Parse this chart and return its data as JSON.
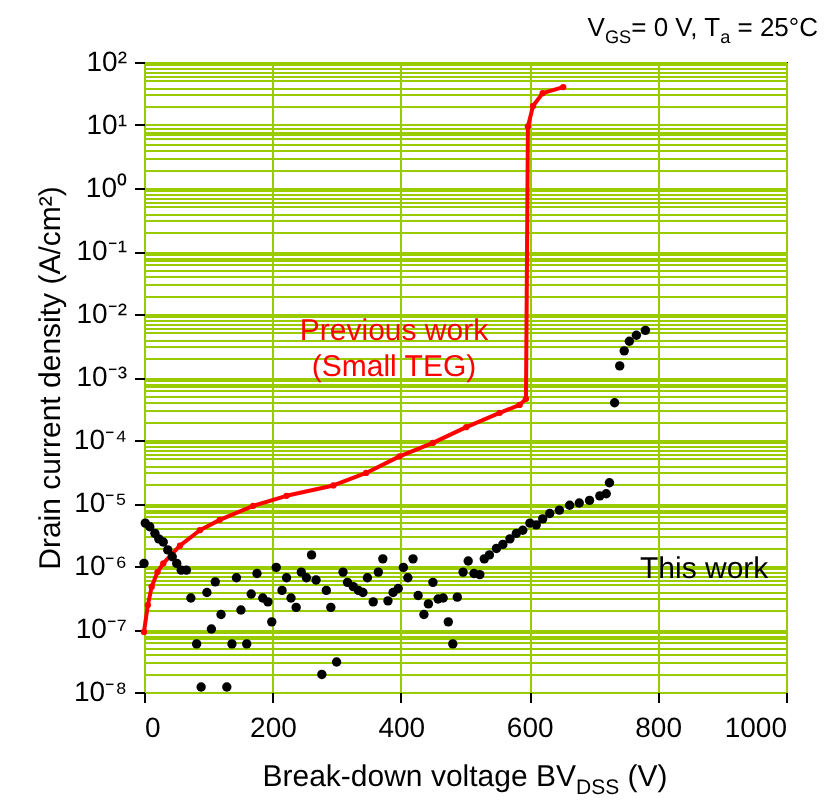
{
  "chart_data": {
    "type": "line",
    "xlabel": "Break-down voltage BV$_{DSS}$ (V)",
    "ylabel": "Drain current density (A/cm²)",
    "annotations": [
      "V$_{GS}$= 0 V, T$_{a}$ = 25°C"
    ],
    "series": [
      {
        "name": "Previous work\n(Small TEG)",
        "color": "#ff0000",
        "type": "line",
        "x": [
          0,
          6,
          12,
          21,
          30,
          56,
          87,
          118,
          170,
          222,
          295,
          346,
          398,
          450,
          502,
          554,
          585,
          595,
          598,
          606,
          621,
          653
        ],
        "values": [
          9e-08,
          2.4e-07,
          4.7e-07,
          8e-07,
          1.1e-06,
          2.1e-06,
          3.7e-06,
          5.4e-06,
          9e-06,
          1.3e-05,
          1.9e-05,
          3e-05,
          5.5e-05,
          9e-05,
          0.00016,
          0.00027,
          0.00036,
          0.00045,
          9.5,
          20,
          32,
          40
        ]
      },
      {
        "name": "This work",
        "color": "#000000",
        "type": "scatter",
        "x": [
          0,
          2,
          9,
          17,
          23,
          30,
          37,
          44,
          51,
          58,
          66,
          73,
          82,
          89,
          98,
          105,
          111,
          120,
          129,
          137,
          144,
          151,
          160,
          167,
          176,
          185,
          193,
          199,
          206,
          215,
          222,
          229,
          237,
          245,
          253,
          261,
          268,
          277,
          284,
          291,
          300,
          310,
          317,
          326,
          334,
          341,
          348,
          357,
          365,
          372,
          380,
          388,
          396,
          404,
          411,
          419,
          427,
          436,
          443,
          450,
          458,
          466,
          474,
          481,
          488,
          497,
          505,
          514,
          523,
          530,
          538,
          549,
          559,
          570,
          580,
          590,
          601,
          611,
          621,
          632,
          647,
          663,
          678,
          694,
          710,
          720,
          725,
          733,
          741,
          748,
          756,
          767,
          781
        ],
        "values": [
          1.1e-06,
          4.8e-06,
          4.2e-06,
          3.3e-06,
          2.7e-06,
          2.4e-06,
          1.8e-06,
          1.4e-06,
          1.1e-06,
          8.6e-07,
          8.6e-07,
          3.1e-07,
          5.8e-08,
          1.2e-08,
          3.8e-07,
          1e-07,
          5.6e-07,
          1.7e-07,
          1.2e-08,
          5.8e-08,
          6.5e-07,
          2e-07,
          5.8e-08,
          3.6e-07,
          7.6e-07,
          3.1e-07,
          2.7e-07,
          1.3e-07,
          9.5e-07,
          4.1e-07,
          6.5e-07,
          3.1e-07,
          2.2e-07,
          8e-07,
          6.5e-07,
          1.5e-06,
          6e-07,
          1.9e-08,
          4.1e-07,
          2.2e-07,
          3e-08,
          8e-07,
          5.5e-07,
          4.7e-07,
          4.1e-07,
          3.8e-07,
          6.5e-07,
          2.7e-07,
          8e-07,
          1.3e-06,
          2.8e-07,
          3.8e-07,
          4.4e-07,
          9.5e-07,
          6.5e-07,
          1.3e-06,
          3.4e-07,
          1.7e-07,
          2.5e-07,
          5.5e-07,
          3e-07,
          3.1e-07,
          1.3e-07,
          5.8e-08,
          3.2e-07,
          8e-07,
          1.2e-06,
          7.6e-07,
          7.3e-07,
          1.3e-06,
          1.5e-06,
          1.9e-06,
          2.2e-06,
          2.7e-06,
          3.3e-06,
          3.7e-06,
          4.8e-06,
          4.5e-06,
          5.6e-06,
          6.8e-06,
          7.7e-06,
          9.2e-06,
          1e-05,
          1.1e-05,
          1.3e-05,
          1.4e-05,
          2.1e-05,
          0.00039,
          0.0015,
          0.0026,
          0.0037,
          0.0046,
          0.0055
        ]
      }
    ],
    "xlim": [
      0,
      1000
    ],
    "xticks": [
      0,
      200,
      400,
      600,
      800,
      1000
    ],
    "ylim": [
      1e-08,
      100
    ],
    "yticks": [
      {
        "value": 1e-08,
        "label": "10⁻⁸"
      },
      {
        "value": 1e-07,
        "label": "10⁻⁷"
      },
      {
        "value": 1e-06,
        "label": "10⁻⁶"
      },
      {
        "value": 1e-05,
        "label": "10⁻⁵"
      },
      {
        "value": 0.0001,
        "label": "10⁻⁴"
      },
      {
        "value": 0.001,
        "label": "10⁻³"
      },
      {
        "value": 0.01,
        "label": "10⁻²"
      },
      {
        "value": 0.1,
        "label": "10⁻¹"
      },
      {
        "value": 1,
        "label": "10⁰"
      },
      {
        "value": 10,
        "label": "10¹"
      },
      {
        "value": 100,
        "label": "10²"
      }
    ],
    "log": "y",
    "grid": true,
    "marker": "circle"
  }
}
